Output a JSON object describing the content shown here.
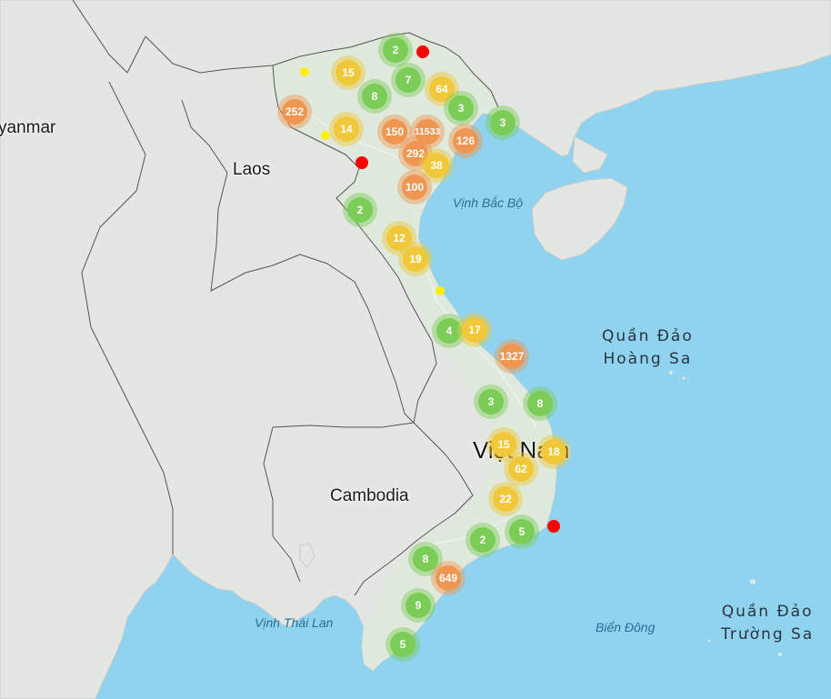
{
  "colors": {
    "sea": "#8fd3ee",
    "land": "#e4e6e3",
    "green": "#7ccc58",
    "yellow": "#f0c83a",
    "orange": "#ef9653",
    "red": "#ff0000",
    "dot_yellow": "#ffee00"
  },
  "labels": {
    "myanmar": "yanmar",
    "laos": "Laos",
    "cambodia": "Cambodia",
    "vietnam": "Việt Nam",
    "gulf_tonkin": "Vịnh Bắc Bộ",
    "gulf_thailand": "Vịnh Thái Lan",
    "east_sea": "Biển Đông",
    "paracel_line1": "Quần Đảo",
    "paracel_line2": "Hoàng Sa",
    "spratly_line1": "Quần Đảo",
    "spratly_line2": "Trường Sa"
  },
  "clusters": [
    {
      "count": "2",
      "level": "green"
    },
    {
      "count": "15",
      "level": "yellow"
    },
    {
      "count": "7",
      "level": "green"
    },
    {
      "count": "64",
      "level": "yellow"
    },
    {
      "count": "8",
      "level": "green"
    },
    {
      "count": "252",
      "level": "orange"
    },
    {
      "count": "3",
      "level": "green"
    },
    {
      "count": "3",
      "level": "green"
    },
    {
      "count": "14",
      "level": "yellow"
    },
    {
      "count": "150",
      "level": "orange"
    },
    {
      "count": "11533",
      "level": "orange"
    },
    {
      "count": "126",
      "level": "orange"
    },
    {
      "count": "292",
      "level": "orange"
    },
    {
      "count": "38",
      "level": "yellow"
    },
    {
      "count": "100",
      "level": "orange"
    },
    {
      "count": "2",
      "level": "green"
    },
    {
      "count": "12",
      "level": "yellow"
    },
    {
      "count": "19",
      "level": "yellow"
    },
    {
      "count": "4",
      "level": "green"
    },
    {
      "count": "17",
      "level": "yellow"
    },
    {
      "count": "1327",
      "level": "orange"
    },
    {
      "count": "3",
      "level": "green"
    },
    {
      "count": "8",
      "level": "green"
    },
    {
      "count": "15",
      "level": "yellow"
    },
    {
      "count": "18",
      "level": "yellow"
    },
    {
      "count": "62",
      "level": "yellow"
    },
    {
      "count": "22",
      "level": "yellow"
    },
    {
      "count": "5",
      "level": "green"
    },
    {
      "count": "2",
      "level": "green"
    },
    {
      "count": "8",
      "level": "green"
    },
    {
      "count": "649",
      "level": "orange"
    },
    {
      "count": "9",
      "level": "green"
    },
    {
      "count": "5",
      "level": "green"
    }
  ],
  "dots": [
    {
      "level": "red"
    },
    {
      "level": "red"
    },
    {
      "level": "red"
    },
    {
      "level": "yellow"
    },
    {
      "level": "yellow"
    },
    {
      "level": "yellow"
    }
  ]
}
